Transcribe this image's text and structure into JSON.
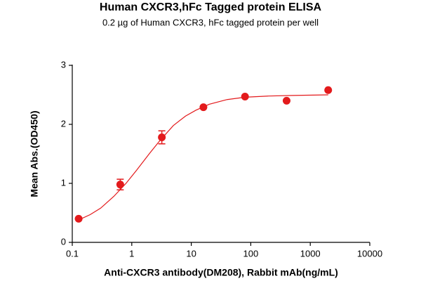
{
  "chart_data": {
    "type": "scatter",
    "title": "Human CXCR3,hFc Tagged protein ELISA",
    "subtitle": "0.2 µg of Human CXCR3, hFc tagged protein per well",
    "xlabel": "Anti-CXCR3 antibody(DM208), Rabbit mAb(ng/mL)",
    "ylabel": "Mean Abs.(OD450)",
    "xscale": "log",
    "xlim": [
      0.1,
      10000
    ],
    "xticks": [
      0.1,
      1,
      10,
      100,
      1000,
      10000
    ],
    "ylim": [
      0,
      3
    ],
    "yticks": [
      0,
      1,
      2,
      3
    ],
    "series": [
      {
        "color": "#e31a1c",
        "x": [
          0.128,
          0.64,
          3.2,
          16,
          80,
          400,
          2000
        ],
        "values": [
          0.4,
          0.98,
          1.78,
          2.29,
          2.47,
          2.4,
          2.58
        ],
        "errors": [
          null,
          0.09,
          0.11,
          null,
          null,
          null,
          null
        ]
      }
    ],
    "fit": {
      "color": "#e31a1c",
      "x": [
        0.128,
        0.2,
        0.3,
        0.5,
        0.8,
        1.2,
        2,
        3,
        5,
        8,
        12,
        20,
        40,
        80,
        200,
        500,
        2000
      ],
      "values": [
        0.38,
        0.47,
        0.58,
        0.78,
        1.0,
        1.22,
        1.51,
        1.73,
        1.98,
        2.14,
        2.24,
        2.34,
        2.42,
        2.46,
        2.48,
        2.49,
        2.5
      ]
    }
  }
}
